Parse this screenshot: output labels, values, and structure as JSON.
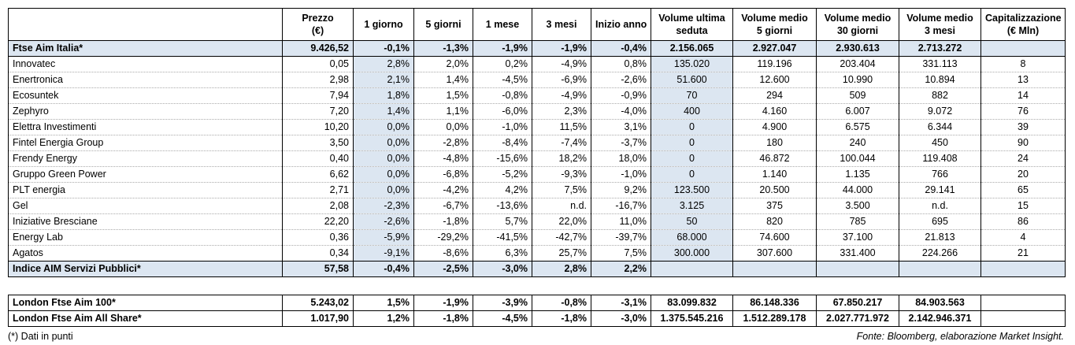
{
  "table": {
    "header": [
      [
        "Prezzo",
        "(€)"
      ],
      [
        "1 giorno"
      ],
      [
        "5 giorni"
      ],
      [
        "1 mese"
      ],
      [
        "3 mesi"
      ],
      [
        "Inizio anno"
      ],
      [
        "Volume ultima",
        "seduta"
      ],
      [
        "Volume medio",
        "5 giorni"
      ],
      [
        "Volume medio",
        "30 giorni"
      ],
      [
        "Volume medio",
        "3 mesi"
      ],
      [
        "Capitalizzazione",
        "(€ Mln)"
      ]
    ],
    "summary_row": [
      "Ftse Aim Italia*",
      "9.426,52",
      "-0,1%",
      "-1,3%",
      "-1,9%",
      "-1,9%",
      "-0,4%",
      "2.156.065",
      "2.927.047",
      "2.930.613",
      "2.713.272"
    ],
    "stocks": [
      [
        "Innovatec",
        "0,05",
        "2,8%",
        "2,0%",
        "0,2%",
        "-4,9%",
        "0,8%",
        "135.020",
        "119.196",
        "203.404",
        "331.113",
        "8"
      ],
      [
        "Enertronica",
        "2,98",
        "2,1%",
        "1,4%",
        "-4,5%",
        "-6,9%",
        "-2,6%",
        "51.600",
        "12.600",
        "10.990",
        "10.894",
        "13"
      ],
      [
        "Ecosuntek",
        "7,94",
        "1,8%",
        "1,5%",
        "-0,8%",
        "-4,9%",
        "-0,9%",
        "70",
        "294",
        "509",
        "882",
        "14"
      ],
      [
        "Zephyro",
        "7,20",
        "1,4%",
        "1,1%",
        "-6,0%",
        "2,3%",
        "-4,0%",
        "400",
        "4.160",
        "6.007",
        "9.072",
        "76"
      ],
      [
        "Elettra Investimenti",
        "10,20",
        "0,0%",
        "0,0%",
        "-1,0%",
        "11,5%",
        "3,1%",
        "0",
        "4.900",
        "6.575",
        "6.344",
        "39"
      ],
      [
        "Fintel Energia Group",
        "3,50",
        "0,0%",
        "-2,8%",
        "-8,4%",
        "-7,4%",
        "-3,7%",
        "0",
        "180",
        "240",
        "450",
        "90"
      ],
      [
        "Frendy Energy",
        "0,40",
        "0,0%",
        "-4,8%",
        "-15,6%",
        "18,2%",
        "18,0%",
        "0",
        "46.872",
        "100.044",
        "119.408",
        "24"
      ],
      [
        "Gruppo Green Power",
        "6,62",
        "0,0%",
        "-6,8%",
        "-5,2%",
        "-9,3%",
        "-1,0%",
        "0",
        "1.140",
        "1.135",
        "766",
        "20"
      ],
      [
        "PLT energia",
        "2,71",
        "0,0%",
        "-4,2%",
        "4,2%",
        "7,5%",
        "9,2%",
        "123.500",
        "20.500",
        "44.000",
        "29.141",
        "65"
      ],
      [
        "Gel",
        "2,08",
        "-2,3%",
        "-6,7%",
        "-13,6%",
        "n.d.",
        "-16,7%",
        "3.125",
        "375",
        "3.500",
        "n.d.",
        "15"
      ],
      [
        "Iniziative Bresciane",
        "22,20",
        "-2,6%",
        "-1,8%",
        "5,7%",
        "22,0%",
        "11,0%",
        "50",
        "820",
        "785",
        "695",
        "86"
      ],
      [
        "Energy Lab",
        "0,36",
        "-5,9%",
        "-29,2%",
        "-41,5%",
        "-42,7%",
        "-39,7%",
        "68.000",
        "74.600",
        "37.100",
        "21.813",
        "4"
      ],
      [
        "Agatos",
        "0,34",
        "-9,1%",
        "-8,6%",
        "6,3%",
        "25,7%",
        "7,5%",
        "300.000",
        "307.600",
        "331.400",
        "224.266",
        "21"
      ]
    ],
    "sector_row": [
      "Indice AIM Servizi Pubblici*",
      "57,58",
      "-0,4%",
      "-2,5%",
      "-3,0%",
      "2,8%",
      "2,2%"
    ],
    "london_rows": [
      [
        "London Ftse Aim 100*",
        "5.243,02",
        "1,5%",
        "-1,9%",
        "-3,9%",
        "-0,8%",
        "-3,1%",
        "83.099.832",
        "86.148.336",
        "67.850.217",
        "84.903.563"
      ],
      [
        "London Ftse Aim All Share*",
        "1.017,90",
        "1,2%",
        "-1,8%",
        "-4,5%",
        "-1,8%",
        "-3,0%",
        "1.375.545.216",
        "1.512.289.178",
        "2.027.771.972",
        "2.142.946.371"
      ]
    ],
    "footnote": "(*) Dati in punti",
    "source": "Fonte: Bloomberg, elaborazione Market Insight."
  }
}
